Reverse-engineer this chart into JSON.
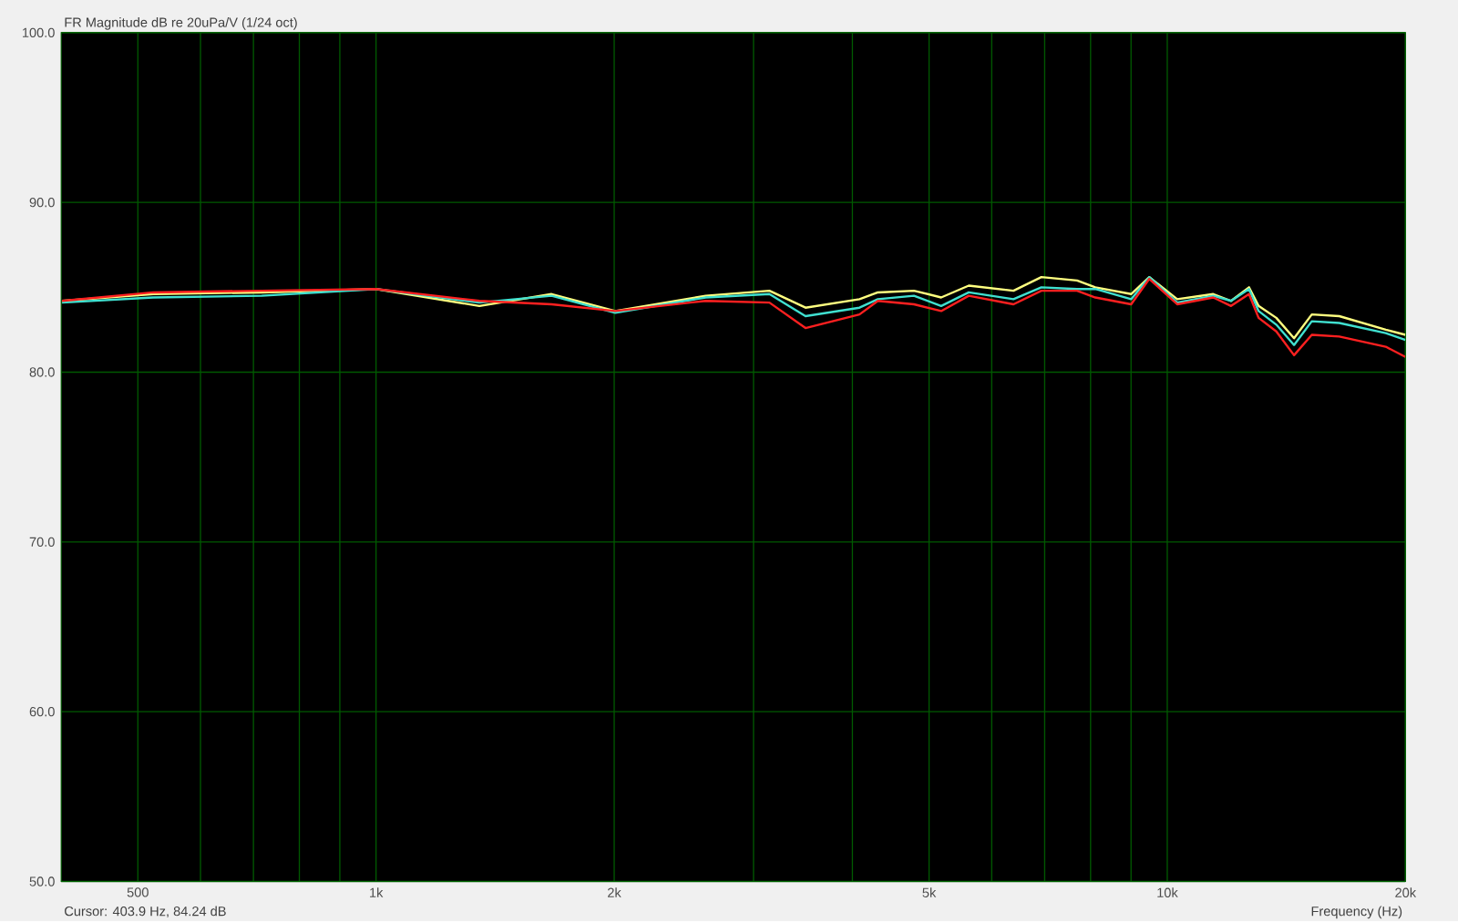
{
  "chart_data": {
    "type": "line",
    "title": "FR Magnitude dB re 20uPa/V (1/24 oct)",
    "xlabel": "Frequency (Hz)",
    "annotations": [
      "Cursor: 403.9 Hz, 84.24 dB"
    ],
    "log": "x",
    "grid": true,
    "marker": "none",
    "line_style": "solid",
    "xlim": [
      400,
      20000
    ],
    "ylim": [
      50,
      100
    ],
    "xticks": [
      {
        "value": 500,
        "label": "500"
      },
      {
        "value": 600,
        "label": null
      },
      {
        "value": 700,
        "label": null
      },
      {
        "value": 800,
        "label": null
      },
      {
        "value": 900,
        "label": null
      },
      {
        "value": 1000,
        "label": "1k"
      },
      {
        "value": 2000,
        "label": "2k"
      },
      {
        "value": 3000,
        "label": null
      },
      {
        "value": 4000,
        "label": null
      },
      {
        "value": 5000,
        "label": "5k"
      },
      {
        "value": 6000,
        "label": null
      },
      {
        "value": 7000,
        "label": null
      },
      {
        "value": 8000,
        "label": null
      },
      {
        "value": 9000,
        "label": null
      },
      {
        "value": 10000,
        "label": "10k"
      },
      {
        "value": 20000,
        "label": "20k"
      }
    ],
    "yticks": [
      {
        "value": 50,
        "label": "50.0"
      },
      {
        "value": 60,
        "label": "60.0"
      },
      {
        "value": 70,
        "label": "70.0"
      },
      {
        "value": 80,
        "label": "80.0"
      },
      {
        "value": 90,
        "label": "90.0"
      },
      {
        "value": 100,
        "label": "100.0"
      }
    ],
    "x": [
      401,
      523,
      717,
      1000,
      1351,
      1667,
      2006,
      2610,
      3142,
      3490,
      4084,
      4308,
      4785,
      5179,
      5612,
      6393,
      6933,
      7693,
      8111,
      9003,
      9491,
      10294,
      11432,
      12040,
      12685,
      13045,
      13734,
      14463,
      15230,
      16499,
      18887,
      20000
    ],
    "series": [
      {
        "color": "#ffff80",
        "values": [
          84.2,
          84.6,
          84.7,
          84.9,
          83.9,
          84.6,
          83.6,
          84.5,
          84.8,
          83.8,
          84.3,
          84.7,
          84.8,
          84.4,
          85.1,
          84.8,
          85.6,
          85.4,
          85.0,
          84.6,
          85.6,
          84.3,
          84.6,
          84.2,
          85.0,
          83.9,
          83.2,
          82.0,
          83.4,
          83.3,
          82.5,
          82.2
        ]
      },
      {
        "color": "#40e0d0",
        "values": [
          84.1,
          84.4,
          84.5,
          84.9,
          84.1,
          84.5,
          83.5,
          84.4,
          84.6,
          83.3,
          83.8,
          84.3,
          84.5,
          83.9,
          84.7,
          84.3,
          85.0,
          84.9,
          84.9,
          84.3,
          85.6,
          84.1,
          84.5,
          84.2,
          84.9,
          83.6,
          82.8,
          81.6,
          83.0,
          82.9,
          82.3,
          81.9
        ]
      },
      {
        "color": "#ff2020",
        "values": [
          84.2,
          84.7,
          84.8,
          84.9,
          84.2,
          84.0,
          83.6,
          84.2,
          84.1,
          82.6,
          83.4,
          84.2,
          84.0,
          83.6,
          84.5,
          84.0,
          84.8,
          84.8,
          84.4,
          84.0,
          85.5,
          84.0,
          84.4,
          83.9,
          84.6,
          83.2,
          82.4,
          81.0,
          82.2,
          82.1,
          81.5,
          80.9
        ]
      }
    ]
  }
}
